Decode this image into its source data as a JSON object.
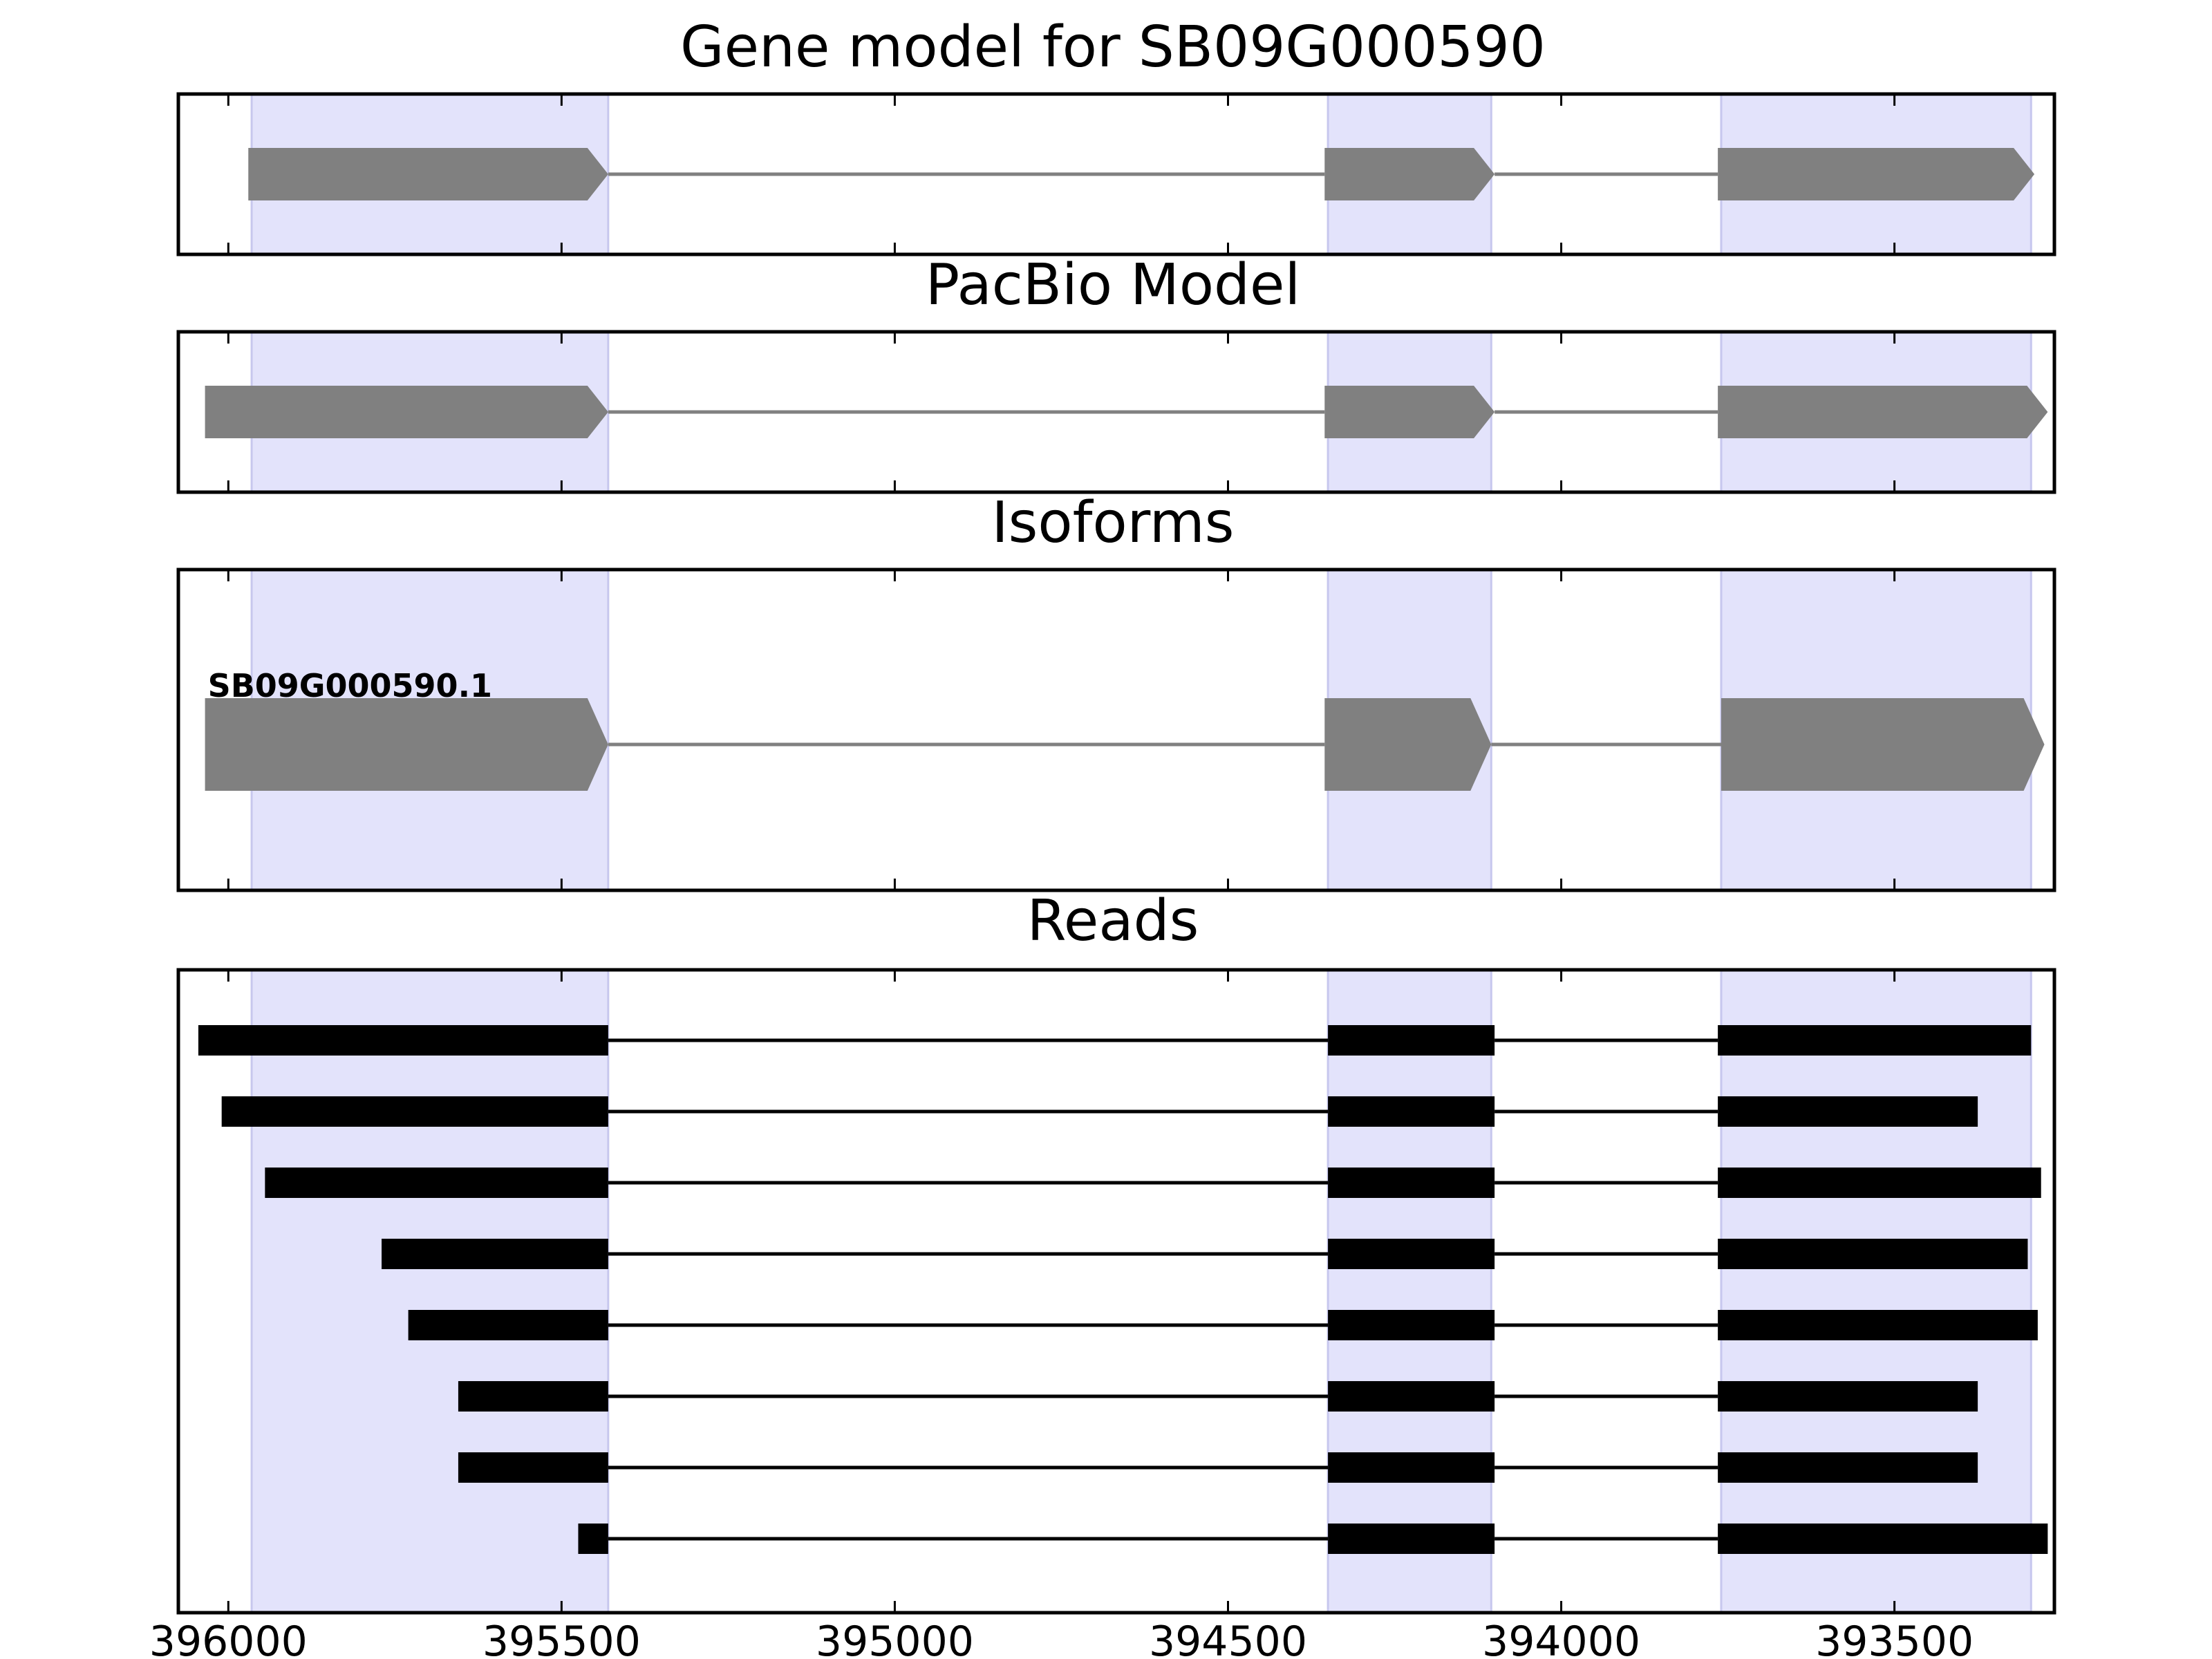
{
  "figure": {
    "panels": [
      {
        "id": "gene",
        "title": "Gene model for SB09G000590"
      },
      {
        "id": "pacbio",
        "title": "PacBio Model"
      },
      {
        "id": "isoforms",
        "title": "Isoforms"
      },
      {
        "id": "reads",
        "title": "Reads"
      }
    ]
  },
  "chart_data": {
    "type": "gene-structure",
    "xlim": [
      396075,
      393260
    ],
    "x_reversed": true,
    "xticks": [
      396000,
      395500,
      395000,
      394500,
      394000,
      393500
    ],
    "xtick_labels": [
      "396000",
      "395500",
      "395000",
      "394500",
      "394000",
      "393500"
    ],
    "tick_labels_shown_on": "reads",
    "highlight_color": "#e3e3fb",
    "shaded_regions": [
      [
        395965,
        395430
      ],
      [
        394350,
        394105
      ],
      [
        393760,
        393295
      ]
    ],
    "colors": {
      "model_exon": "#808080",
      "intron_model": "#808080",
      "read_exon": "#000000",
      "read_intron": "#000000"
    },
    "gene_model": {
      "strand": "-",
      "exons": [
        [
          395970,
          395430
        ],
        [
          394355,
          394100
        ],
        [
          393765,
          393290
        ]
      ]
    },
    "pacbio_model": {
      "strand": "-",
      "exons": [
        [
          396035,
          395430
        ],
        [
          394355,
          394100
        ],
        [
          393765,
          393270
        ]
      ]
    },
    "isoforms": [
      {
        "name": "SB09G000590.1",
        "strand": "-",
        "exons": [
          [
            396035,
            395430
          ],
          [
            394355,
            394105
          ],
          [
            393760,
            393275
          ]
        ]
      }
    ],
    "reads": [
      {
        "exons": [
          [
            396045,
            395430
          ],
          [
            394350,
            394100
          ],
          [
            393765,
            393295
          ]
        ]
      },
      {
        "exons": [
          [
            396010,
            395430
          ],
          [
            394350,
            394100
          ],
          [
            393765,
            393375
          ]
        ]
      },
      {
        "exons": [
          [
            395945,
            395430
          ],
          [
            394350,
            394100
          ],
          [
            393765,
            393280
          ]
        ]
      },
      {
        "exons": [
          [
            395770,
            395430
          ],
          [
            394350,
            394100
          ],
          [
            393765,
            393300
          ]
        ]
      },
      {
        "exons": [
          [
            395730,
            395430
          ],
          [
            394350,
            394100
          ],
          [
            393765,
            393285
          ]
        ]
      },
      {
        "exons": [
          [
            395655,
            395430
          ],
          [
            394350,
            394100
          ],
          [
            393765,
            393375
          ]
        ]
      },
      {
        "exons": [
          [
            395655,
            395430
          ],
          [
            394350,
            394100
          ],
          [
            393765,
            393375
          ]
        ]
      },
      {
        "exons": [
          [
            395475,
            395430
          ],
          [
            394350,
            394100
          ],
          [
            393765,
            393270
          ]
        ]
      }
    ]
  }
}
